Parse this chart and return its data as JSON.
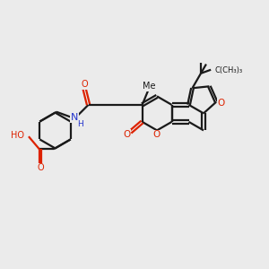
{
  "background_color": "#ebebeb",
  "bond_color": "#1a1a1a",
  "oxygen_color": "#dd2200",
  "nitrogen_color": "#2233cc",
  "line_width": 1.6,
  "figsize": [
    3.0,
    3.0
  ],
  "dpi": 100,
  "xlim": [
    0,
    10
  ],
  "ylim": [
    0,
    10
  ]
}
